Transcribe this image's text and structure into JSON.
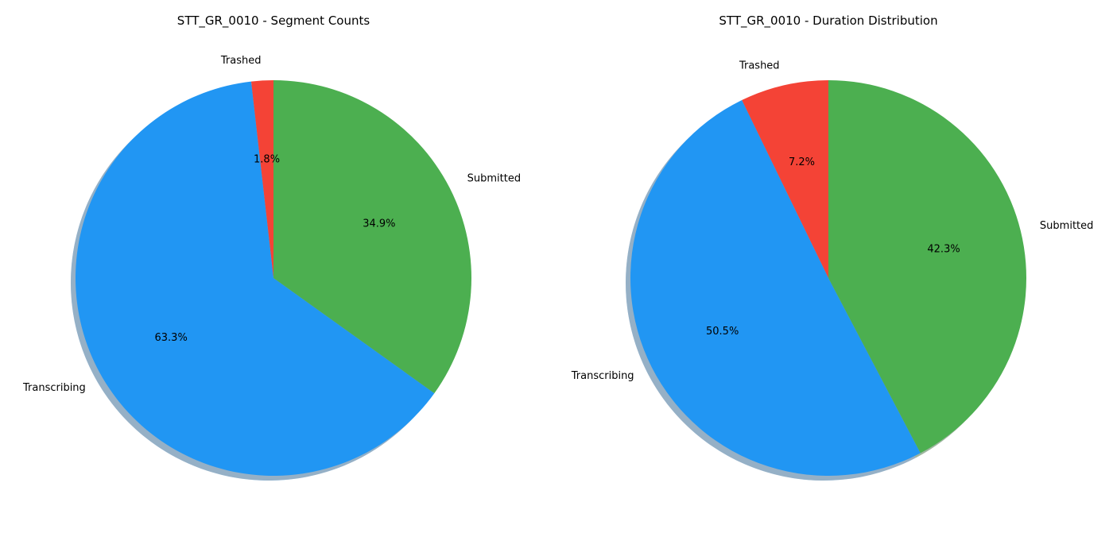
{
  "chart_data": [
    {
      "type": "pie",
      "title": "STT_GR_0010 - Segment Counts",
      "categories": [
        "Trashed",
        "Transcribing",
        "Submitted"
      ],
      "values": [
        1.8,
        63.3,
        34.9
      ],
      "value_labels": [
        "1.8%",
        "63.3%",
        "34.9%"
      ],
      "colors": [
        "#f44336",
        "#2196f3",
        "#4caf50"
      ],
      "start_angle": 90,
      "direction": "counterclockwise",
      "shadow": true,
      "legend": "none"
    },
    {
      "type": "pie",
      "title": "STT_GR_0010 - Duration Distribution",
      "categories": [
        "Trashed",
        "Transcribing",
        "Submitted"
      ],
      "values": [
        7.2,
        50.5,
        42.3
      ],
      "value_labels": [
        "7.2%",
        "50.5%",
        "42.3%"
      ],
      "colors": [
        "#f44336",
        "#2196f3",
        "#4caf50"
      ],
      "start_angle": 90,
      "direction": "counterclockwise",
      "shadow": true,
      "legend": "none"
    }
  ]
}
